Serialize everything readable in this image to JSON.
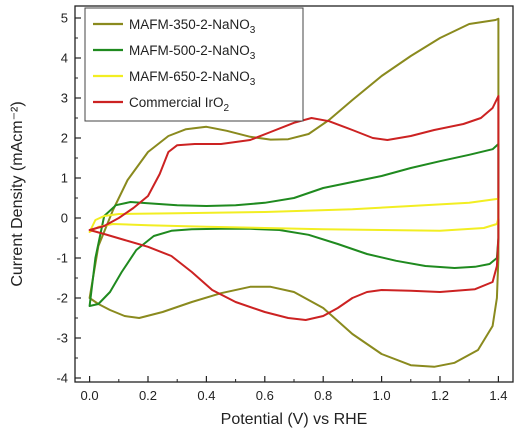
{
  "chart_data": {
    "type": "line",
    "title": "",
    "xlabel": "Potential (V) vs RHE",
    "ylabel": "Current Density (mAcm⁻²)",
    "xlim": [
      -0.05,
      1.45
    ],
    "ylim": [
      -4.1,
      5.3
    ],
    "xticks": [
      0.0,
      0.2,
      0.4,
      0.6,
      0.8,
      1.0,
      1.2,
      1.4
    ],
    "xtick_labels": [
      "0.0",
      "0.2",
      "0.4",
      "0.6",
      "0.8",
      "1.0",
      "1.2",
      "1.4"
    ],
    "yticks": [
      -4,
      -3,
      -2,
      -1,
      0,
      1,
      2,
      3,
      4,
      5
    ],
    "ytick_labels": [
      "-4",
      "-3",
      "-2",
      "-1",
      "0",
      "1",
      "2",
      "3",
      "4",
      "5"
    ],
    "grid": false,
    "legend": {
      "placement": "top-left",
      "entries": [
        {
          "base": "MAFM-350-2-NaNO",
          "sub": "3"
        },
        {
          "base": "MAFM-500-2-NaNO",
          "sub": "3"
        },
        {
          "base": "MAFM-650-2-NaNO",
          "sub": "3"
        },
        {
          "base": "Commercial IrO",
          "sub": "2"
        }
      ]
    },
    "series": [
      {
        "name": "MAFM-350-2-NaNO3",
        "color": "#8a8a1e",
        "points": [
          [
            0.0,
            -2.0
          ],
          [
            0.03,
            -0.7
          ],
          [
            0.08,
            0.2
          ],
          [
            0.13,
            0.95
          ],
          [
            0.2,
            1.65
          ],
          [
            0.27,
            2.05
          ],
          [
            0.33,
            2.22
          ],
          [
            0.4,
            2.28
          ],
          [
            0.47,
            2.18
          ],
          [
            0.55,
            2.03
          ],
          [
            0.62,
            1.96
          ],
          [
            0.68,
            1.97
          ],
          [
            0.75,
            2.1
          ],
          [
            0.82,
            2.45
          ],
          [
            0.9,
            2.95
          ],
          [
            1.0,
            3.55
          ],
          [
            1.1,
            4.05
          ],
          [
            1.2,
            4.5
          ],
          [
            1.3,
            4.85
          ],
          [
            1.39,
            4.95
          ],
          [
            1.4,
            4.98
          ],
          [
            1.4,
            4.0
          ],
          [
            1.4,
            1.0
          ],
          [
            1.4,
            -1.0
          ],
          [
            1.395,
            -2.0
          ],
          [
            1.38,
            -2.7
          ],
          [
            1.33,
            -3.3
          ],
          [
            1.25,
            -3.62
          ],
          [
            1.18,
            -3.72
          ],
          [
            1.1,
            -3.68
          ],
          [
            1.0,
            -3.4
          ],
          [
            0.9,
            -2.9
          ],
          [
            0.8,
            -2.25
          ],
          [
            0.7,
            -1.85
          ],
          [
            0.62,
            -1.72
          ],
          [
            0.55,
            -1.72
          ],
          [
            0.45,
            -1.88
          ],
          [
            0.35,
            -2.1
          ],
          [
            0.25,
            -2.35
          ],
          [
            0.17,
            -2.5
          ],
          [
            0.12,
            -2.45
          ],
          [
            0.07,
            -2.3
          ],
          [
            0.03,
            -2.15
          ],
          [
            0.0,
            -2.0
          ]
        ]
      },
      {
        "name": "MAFM-500-2-NaNO3",
        "color": "#1f8a1f",
        "points": [
          [
            0.0,
            -2.2
          ],
          [
            0.02,
            -1.0
          ],
          [
            0.05,
            0.05
          ],
          [
            0.09,
            0.32
          ],
          [
            0.14,
            0.4
          ],
          [
            0.2,
            0.37
          ],
          [
            0.3,
            0.32
          ],
          [
            0.4,
            0.3
          ],
          [
            0.5,
            0.32
          ],
          [
            0.6,
            0.38
          ],
          [
            0.7,
            0.5
          ],
          [
            0.8,
            0.75
          ],
          [
            0.9,
            0.9
          ],
          [
            1.0,
            1.05
          ],
          [
            1.1,
            1.25
          ],
          [
            1.2,
            1.42
          ],
          [
            1.3,
            1.58
          ],
          [
            1.38,
            1.72
          ],
          [
            1.4,
            1.85
          ],
          [
            1.4,
            0.5
          ],
          [
            1.4,
            -0.5
          ],
          [
            1.395,
            -1.0
          ],
          [
            1.37,
            -1.15
          ],
          [
            1.32,
            -1.22
          ],
          [
            1.25,
            -1.25
          ],
          [
            1.15,
            -1.2
          ],
          [
            1.05,
            -1.07
          ],
          [
            0.95,
            -0.9
          ],
          [
            0.85,
            -0.65
          ],
          [
            0.75,
            -0.42
          ],
          [
            0.65,
            -0.3
          ],
          [
            0.55,
            -0.27
          ],
          [
            0.45,
            -0.27
          ],
          [
            0.35,
            -0.28
          ],
          [
            0.28,
            -0.32
          ],
          [
            0.22,
            -0.45
          ],
          [
            0.16,
            -0.8
          ],
          [
            0.11,
            -1.35
          ],
          [
            0.07,
            -1.85
          ],
          [
            0.03,
            -2.15
          ],
          [
            0.0,
            -2.2
          ]
        ]
      },
      {
        "name": "MAFM-650-2-NaNO3",
        "color": "#f2ee22",
        "points": [
          [
            0.0,
            -0.35
          ],
          [
            0.02,
            -0.05
          ],
          [
            0.05,
            0.05
          ],
          [
            0.1,
            0.1
          ],
          [
            0.3,
            0.12
          ],
          [
            0.6,
            0.15
          ],
          [
            0.9,
            0.22
          ],
          [
            1.1,
            0.3
          ],
          [
            1.3,
            0.38
          ],
          [
            1.4,
            0.48
          ],
          [
            1.4,
            0.0
          ],
          [
            1.395,
            -0.15
          ],
          [
            1.35,
            -0.25
          ],
          [
            1.2,
            -0.32
          ],
          [
            1.0,
            -0.3
          ],
          [
            0.8,
            -0.28
          ],
          [
            0.6,
            -0.25
          ],
          [
            0.4,
            -0.22
          ],
          [
            0.2,
            -0.18
          ],
          [
            0.08,
            -0.15
          ],
          [
            0.03,
            -0.22
          ],
          [
            0.0,
            -0.35
          ]
        ]
      },
      {
        "name": "Commercial IrO2",
        "color": "#cc2222",
        "points": [
          [
            0.0,
            -0.3
          ],
          [
            0.05,
            -0.2
          ],
          [
            0.1,
            0.0
          ],
          [
            0.15,
            0.25
          ],
          [
            0.2,
            0.55
          ],
          [
            0.24,
            1.1
          ],
          [
            0.27,
            1.65
          ],
          [
            0.3,
            1.82
          ],
          [
            0.36,
            1.85
          ],
          [
            0.45,
            1.85
          ],
          [
            0.55,
            1.95
          ],
          [
            0.62,
            2.15
          ],
          [
            0.7,
            2.38
          ],
          [
            0.76,
            2.5
          ],
          [
            0.82,
            2.42
          ],
          [
            0.9,
            2.2
          ],
          [
            0.97,
            2.0
          ],
          [
            1.02,
            1.95
          ],
          [
            1.1,
            2.05
          ],
          [
            1.18,
            2.2
          ],
          [
            1.28,
            2.35
          ],
          [
            1.34,
            2.5
          ],
          [
            1.38,
            2.75
          ],
          [
            1.4,
            3.05
          ],
          [
            1.4,
            1.0
          ],
          [
            1.4,
            -0.5
          ],
          [
            1.395,
            -1.2
          ],
          [
            1.38,
            -1.6
          ],
          [
            1.32,
            -1.78
          ],
          [
            1.2,
            -1.85
          ],
          [
            1.1,
            -1.82
          ],
          [
            1.0,
            -1.8
          ],
          [
            0.95,
            -1.85
          ],
          [
            0.9,
            -2.0
          ],
          [
            0.85,
            -2.25
          ],
          [
            0.8,
            -2.45
          ],
          [
            0.74,
            -2.55
          ],
          [
            0.68,
            -2.5
          ],
          [
            0.6,
            -2.35
          ],
          [
            0.5,
            -2.1
          ],
          [
            0.42,
            -1.8
          ],
          [
            0.35,
            -1.35
          ],
          [
            0.28,
            -0.95
          ],
          [
            0.2,
            -0.72
          ],
          [
            0.12,
            -0.55
          ],
          [
            0.05,
            -0.4
          ],
          [
            0.0,
            -0.3
          ]
        ]
      }
    ]
  }
}
